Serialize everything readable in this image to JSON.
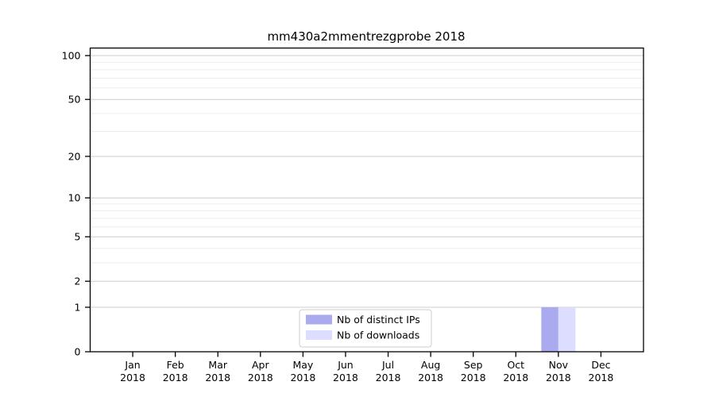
{
  "title": "mm430a2mmentrezgprobe 2018",
  "chart_data": {
    "type": "bar",
    "title": "mm430a2mmentrezgprobe 2018",
    "x_months": [
      "Jan",
      "Feb",
      "Mar",
      "Apr",
      "May",
      "Jun",
      "Jul",
      "Aug",
      "Sep",
      "Oct",
      "Nov",
      "Dec"
    ],
    "x_year": "2018",
    "series": [
      {
        "name": "Nb of distinct IPs",
        "color": "#aaaaee",
        "values": [
          0,
          0,
          0,
          0,
          0,
          0,
          0,
          0,
          0,
          0,
          1,
          0
        ]
      },
      {
        "name": "Nb of downloads",
        "color": "#ddddff",
        "values": [
          0,
          0,
          0,
          0,
          0,
          0,
          0,
          0,
          0,
          0,
          1,
          0
        ]
      }
    ],
    "y_scale": "log1p",
    "ylim": [
      0,
      100
    ],
    "y_ticks_major": [
      0,
      1,
      2,
      5,
      10,
      20,
      50,
      100
    ],
    "y_ticks_minor": [
      3,
      4,
      6,
      7,
      8,
      9,
      30,
      40,
      60,
      70,
      80,
      90
    ],
    "grid": true,
    "legend_position": "bottom-center",
    "colors": {
      "grid_major": "#cccccc",
      "grid_minor": "#ededed",
      "axis_line": "#000000",
      "tick_text": "#000000",
      "legend_border": "#cccccc",
      "legend_background": "#ffffff"
    }
  }
}
